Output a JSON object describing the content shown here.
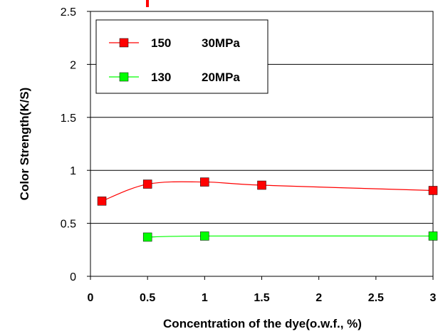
{
  "chart_data": {
    "type": "line",
    "xlabel": "Concentration of the dye(o.w.f., %)",
    "ylabel": "Color Strength(K/S)",
    "xlim": [
      0,
      3
    ],
    "ylim": [
      0,
      2.5
    ],
    "x_ticks": [
      "0",
      "0.5",
      "1",
      "1.5",
      "2",
      "2.5",
      "3"
    ],
    "y_ticks": [
      "0",
      "0.5",
      "1",
      "1.5",
      "2",
      "2.5"
    ],
    "grid": "horizontal",
    "legend_position": "top-left",
    "series": [
      {
        "name": "150 30MPa",
        "label_a": "150",
        "label_b": "30MPa",
        "color": "#ff0000",
        "marker": "square",
        "x": [
          0.1,
          0.5,
          1,
          1.5,
          3
        ],
        "y": [
          0.71,
          0.87,
          0.89,
          0.86,
          0.81
        ]
      },
      {
        "name": "130 20MPa",
        "label_a": "130",
        "label_b": "20MPa",
        "color": "#00ff00",
        "marker": "square",
        "x": [
          0.5,
          1,
          3
        ],
        "y": [
          0.37,
          0.38,
          0.38
        ]
      }
    ]
  }
}
